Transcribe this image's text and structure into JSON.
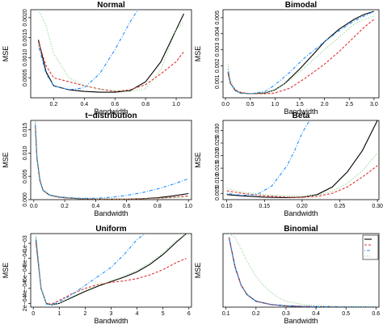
{
  "chart_data": [
    {
      "type": "line",
      "title": "Normal",
      "xlabel": "Bandwidth",
      "ylabel": "MSE",
      "xlim": [
        0.05,
        1.1
      ],
      "ylim": [
        0,
        0.0022
      ],
      "xticks": [
        0.2,
        0.4,
        0.6,
        0.8,
        1.0
      ],
      "xtick_labels": [
        "0.2",
        "0.4",
        "0.6",
        "0.8",
        "1.0"
      ],
      "yticks": [
        0.0005,
        0.001,
        0.0015,
        0.002
      ],
      "ytick_labels": [
        "0.0005",
        "0.0010",
        "0.0015",
        "0.0020"
      ],
      "series": [
        {
          "color": "#000000",
          "dash": "solid",
          "x": [
            0.1,
            0.15,
            0.2,
            0.3,
            0.4,
            0.5,
            0.6,
            0.7,
            0.8,
            0.9,
            1.0,
            1.05
          ],
          "y": [
            0.00145,
            0.00065,
            0.0003,
            0.0002,
            0.00016,
            0.00014,
            0.00014,
            0.00018,
            0.0004,
            0.0009,
            0.0017,
            0.0021
          ]
        },
        {
          "color": "#e03030",
          "dash": "dashed",
          "x": [
            0.1,
            0.15,
            0.2,
            0.3,
            0.4,
            0.5,
            0.6,
            0.7,
            0.8,
            0.9,
            1.0,
            1.05
          ],
          "y": [
            0.0014,
            0.0008,
            0.0005,
            0.0004,
            0.0003,
            0.00022,
            0.00016,
            0.0002,
            0.00033,
            0.0006,
            0.0009,
            0.00115
          ]
        },
        {
          "color": "#1e90ff",
          "dash": "dotdash",
          "x": [
            0.1,
            0.15,
            0.2,
            0.3,
            0.4,
            0.5,
            0.6,
            0.7,
            0.75
          ],
          "y": [
            0.0013,
            0.0006,
            0.0003,
            0.0002,
            0.00025,
            0.0006,
            0.0012,
            0.0019,
            0.0022
          ]
        },
        {
          "color": "#7ccd7c",
          "dash": "dotted",
          "x": [
            0.1,
            0.15,
            0.2,
            0.3,
            0.4,
            0.5,
            0.6,
            0.7,
            0.8,
            0.9,
            0.95,
            1.0,
            1.05
          ],
          "y": [
            0.0022,
            0.0018,
            0.0011,
            0.0005,
            0.0003,
            0.00022,
            0.00018,
            0.00016,
            0.00022,
            0.0007,
            0.0012,
            0.0017,
            0.0019
          ]
        }
      ]
    },
    {
      "type": "line",
      "title": "Bimodal",
      "xlabel": "Bandwidth",
      "ylabel": "MSE",
      "xlim": [
        -0.05,
        3.1
      ],
      "ylim": [
        0,
        0.0055
      ],
      "xticks": [
        0.0,
        0.5,
        1.0,
        1.5,
        2.0,
        2.5,
        3.0
      ],
      "xtick_labels": [
        "0.0",
        "0.5",
        "1.0",
        "1.5",
        "2.0",
        "2.5",
        "3.0"
      ],
      "yticks": [
        0.001,
        0.002,
        0.003,
        0.004,
        0.005
      ],
      "ytick_labels": [
        "0.001",
        "0.002",
        "0.003",
        "0.004",
        "0.005"
      ],
      "series": [
        {
          "color": "#000000",
          "dash": "solid",
          "x": [
            0.05,
            0.1,
            0.2,
            0.3,
            0.5,
            0.8,
            1.0,
            1.2,
            1.5,
            1.8,
            2.0,
            2.3,
            2.6,
            2.8,
            3.0
          ],
          "y": [
            0.0016,
            0.0009,
            0.00045,
            0.0003,
            0.00025,
            0.0003,
            0.0005,
            0.0009,
            0.0018,
            0.0028,
            0.0035,
            0.0043,
            0.0049,
            0.0052,
            0.0054
          ]
        },
        {
          "color": "#e03030",
          "dash": "dashed",
          "x": [
            0.05,
            0.1,
            0.2,
            0.3,
            0.5,
            0.8,
            1.0,
            1.3,
            1.6,
            2.0,
            2.3,
            2.6,
            2.8,
            3.0
          ],
          "y": [
            0.0016,
            0.0009,
            0.0005,
            0.00035,
            0.00025,
            0.00025,
            0.0003,
            0.0006,
            0.0012,
            0.0021,
            0.0029,
            0.0038,
            0.0044,
            0.0049
          ]
        },
        {
          "color": "#1e90ff",
          "dash": "dotdash",
          "x": [
            0.05,
            0.1,
            0.2,
            0.3,
            0.5,
            0.8,
            1.0,
            1.3,
            1.6,
            2.0,
            2.3,
            2.6,
            2.8,
            3.0
          ],
          "y": [
            0.0018,
            0.0009,
            0.00045,
            0.0003,
            0.00025,
            0.0004,
            0.0008,
            0.0016,
            0.0025,
            0.0035,
            0.0042,
            0.0048,
            0.0051,
            0.0054
          ]
        },
        {
          "color": "#7ccd7c",
          "dash": "dotted",
          "x": [
            0.05,
            0.1,
            0.2,
            0.3,
            0.5,
            0.8,
            1.0,
            1.3,
            1.6,
            2.0,
            2.3,
            2.6,
            2.8,
            3.0
          ],
          "y": [
            0.0021,
            0.0011,
            0.0005,
            0.0003,
            0.00025,
            0.0003,
            0.0005,
            0.0011,
            0.0019,
            0.003,
            0.0038,
            0.0046,
            0.0049,
            0.0051
          ]
        }
      ]
    },
    {
      "type": "line",
      "title": "t−distribution",
      "xlabel": "Bandwidth",
      "ylabel": "MSE",
      "xlim": [
        -0.02,
        1.02
      ],
      "ylim": [
        0,
        0.017
      ],
      "xticks": [
        0.0,
        0.2,
        0.4,
        0.6,
        0.8,
        1.0
      ],
      "xtick_labels": [
        "0.0",
        "0.2",
        "0.4",
        "0.6",
        "0.8",
        "1.0"
      ],
      "yticks": [
        0.0,
        0.005,
        0.01,
        0.015
      ],
      "ytick_labels": [
        "0.000",
        "0.005",
        "0.010",
        "0.015"
      ],
      "series": [
        {
          "color": "#000000",
          "dash": "solid",
          "x": [
            0.01,
            0.02,
            0.04,
            0.06,
            0.1,
            0.15,
            0.2,
            0.3,
            0.4,
            0.5,
            0.6,
            0.7,
            0.8,
            0.9,
            1.0
          ],
          "y": [
            0.016,
            0.009,
            0.004,
            0.002,
            0.001,
            0.0006,
            0.0004,
            0.0002,
            0.0001,
            0.0001,
            0.0001,
            0.0002,
            0.0004,
            0.0008,
            0.0013
          ]
        },
        {
          "color": "#e03030",
          "dash": "dashed",
          "x": [
            0.01,
            0.02,
            0.04,
            0.06,
            0.1,
            0.15,
            0.2,
            0.3,
            0.4,
            0.5,
            0.6,
            0.7,
            0.8,
            0.9,
            1.0
          ],
          "y": [
            0.016,
            0.009,
            0.004,
            0.002,
            0.001,
            0.0006,
            0.0004,
            0.0002,
            0.0001,
            0.0001,
            0.0001,
            0.0002,
            0.0003,
            0.0005,
            0.0008
          ]
        },
        {
          "color": "#1e90ff",
          "dash": "dotdash",
          "x": [
            0.01,
            0.02,
            0.04,
            0.06,
            0.1,
            0.15,
            0.2,
            0.3,
            0.4,
            0.5,
            0.6,
            0.7,
            0.8,
            0.9,
            1.0
          ],
          "y": [
            0.0165,
            0.009,
            0.004,
            0.002,
            0.001,
            0.0007,
            0.0005,
            0.0003,
            0.0003,
            0.0005,
            0.0009,
            0.0015,
            0.0023,
            0.0033,
            0.0045
          ]
        },
        {
          "color": "#7ccd7c",
          "dash": "dotted",
          "x": [
            0.01,
            0.02,
            0.04,
            0.06,
            0.1,
            0.15,
            0.2,
            0.3,
            0.4,
            0.5,
            0.6,
            0.7,
            0.8,
            0.9,
            1.0
          ],
          "y": [
            0.0168,
            0.0095,
            0.0045,
            0.0022,
            0.0011,
            0.0007,
            0.0004,
            0.0002,
            0.0001,
            0.0001,
            0.0001,
            0.0002,
            0.0003,
            0.0004,
            0.0006
          ]
        }
      ]
    },
    {
      "type": "line",
      "title": "Beta",
      "xlabel": "Bandwidth",
      "ylabel": "MSE",
      "xlim": [
        0.095,
        0.302
      ],
      "ylim": [
        0.0025,
        0.034
      ],
      "xticks": [
        0.1,
        0.15,
        0.2,
        0.25,
        0.3
      ],
      "xtick_labels": [
        "0.10",
        "0.15",
        "0.20",
        "0.25",
        "0.30"
      ],
      "yticks": [
        0.005,
        0.01,
        0.015,
        0.02,
        0.025,
        0.03
      ],
      "ytick_labels": [
        "0.005",
        "0.010",
        "0.015",
        "0.020",
        "0.025",
        "0.030"
      ],
      "series": [
        {
          "color": "#000000",
          "dash": "solid",
          "x": [
            0.1,
            0.12,
            0.15,
            0.18,
            0.2,
            0.22,
            0.24,
            0.26,
            0.28,
            0.3
          ],
          "y": [
            0.0045,
            0.004,
            0.0035,
            0.0033,
            0.0035,
            0.0045,
            0.0075,
            0.0135,
            0.022,
            0.034
          ]
        },
        {
          "color": "#e03030",
          "dash": "dashed",
          "x": [
            0.1,
            0.12,
            0.15,
            0.18,
            0.2,
            0.22,
            0.24,
            0.26,
            0.28,
            0.3
          ],
          "y": [
            0.006,
            0.005,
            0.004,
            0.0035,
            0.0034,
            0.0038,
            0.005,
            0.0075,
            0.0115,
            0.016
          ]
        },
        {
          "color": "#1e90ff",
          "dash": "dotdash",
          "x": [
            0.1,
            0.12,
            0.14,
            0.16,
            0.18,
            0.19,
            0.2,
            0.21
          ],
          "y": [
            0.005,
            0.0042,
            0.0045,
            0.008,
            0.016,
            0.022,
            0.029,
            0.034
          ]
        },
        {
          "color": "#7ccd7c",
          "dash": "dotted",
          "x": [
            0.1,
            0.12,
            0.15,
            0.18,
            0.2,
            0.22,
            0.24,
            0.26,
            0.28,
            0.3
          ],
          "y": [
            0.007,
            0.0055,
            0.0045,
            0.004,
            0.0038,
            0.0042,
            0.0058,
            0.009,
            0.014,
            0.021
          ]
        }
      ]
    },
    {
      "type": "line",
      "title": "Uniform",
      "xlabel": "Bandwidth",
      "ylabel": "MSE",
      "xlim": [
        -0.1,
        6.1
      ],
      "ylim": [
        0.00015,
        0.00113
      ],
      "xticks": [
        0,
        1,
        2,
        3,
        4,
        5,
        6
      ],
      "xtick_labels": [
        "0",
        "1",
        "2",
        "3",
        "4",
        "5",
        "6"
      ],
      "yticks": [
        0.0002,
        0.0004,
        0.0006,
        0.0008,
        0.001
      ],
      "ytick_labels": [
        "2e−04",
        "4e−04",
        "6e−04",
        "8e−04",
        "1e−03"
      ],
      "series": [
        {
          "color": "#000000",
          "dash": "solid",
          "x": [
            0.1,
            0.3,
            0.5,
            0.7,
            1.0,
            1.5,
            2.0,
            2.5,
            3.0,
            3.5,
            4.0,
            4.5,
            5.0,
            5.5,
            5.9
          ],
          "y": [
            0.00105,
            0.0004,
            0.0002,
            0.00018,
            0.0002,
            0.00028,
            0.00036,
            0.00043,
            0.00049,
            0.00055,
            0.00062,
            0.00072,
            0.00085,
            0.00101,
            0.00113
          ]
        },
        {
          "color": "#e03030",
          "dash": "dashed",
          "x": [
            0.1,
            0.3,
            0.5,
            0.7,
            1.0,
            1.5,
            2.0,
            2.5,
            3.0,
            3.5,
            4.0,
            4.5,
            5.0,
            5.5,
            5.9
          ],
          "y": [
            0.00102,
            0.0004,
            0.0002,
            0.00019,
            0.00024,
            0.00033,
            0.0004,
            0.00045,
            0.00048,
            0.0005,
            0.00053,
            0.00058,
            0.00065,
            0.00074,
            0.0008
          ]
        },
        {
          "color": "#1e90ff",
          "dash": "dotdash",
          "x": [
            0.1,
            0.3,
            0.5,
            0.7,
            1.0,
            1.5,
            2.0,
            2.5,
            3.0,
            3.5,
            4.0,
            4.3
          ],
          "y": [
            0.00108,
            0.0004,
            0.00019,
            0.00018,
            0.00022,
            0.00032,
            0.00044,
            0.00056,
            0.00068,
            0.00085,
            0.00105,
            0.00113
          ]
        },
        {
          "color": "#7ccd7c",
          "dash": "dotted",
          "x": [
            0.1,
            0.3,
            0.5,
            0.7,
            1.0,
            1.5,
            2.0,
            2.5,
            3.0,
            3.5,
            4.0,
            4.5,
            5.0,
            5.5,
            5.9
          ],
          "y": [
            0.00113,
            0.0004,
            0.0002,
            0.00018,
            0.0002,
            0.00029,
            0.00037,
            0.00044,
            0.0005,
            0.00056,
            0.00064,
            0.00074,
            0.00087,
            0.00103,
            0.00113
          ]
        }
      ]
    },
    {
      "type": "line",
      "title": "Binomial",
      "xlabel": "Bandwidth",
      "ylabel": "MSE",
      "xlim": [
        0.09,
        0.61
      ],
      "ylim": [
        0,
        1
      ],
      "xticks": [
        0.1,
        0.2,
        0.3,
        0.4,
        0.5,
        0.6
      ],
      "xtick_labels": [
        "0.1",
        "0.2",
        "0.3",
        "0.4",
        "0.5",
        "0.6"
      ],
      "yticks": [],
      "ytick_labels": [],
      "series": [
        {
          "color": "#000000",
          "dash": "solid",
          "x": [
            0.11,
            0.13,
            0.15,
            0.17,
            0.2,
            0.25,
            0.3,
            0.35,
            0.4,
            0.5,
            0.6
          ],
          "y": [
            0.95,
            0.55,
            0.3,
            0.17,
            0.08,
            0.035,
            0.018,
            0.01,
            0.006,
            0.003,
            0.002
          ]
        },
        {
          "color": "#e03030",
          "dash": "dashed",
          "x": [
            0.11,
            0.13,
            0.15,
            0.17,
            0.2,
            0.25,
            0.3,
            0.35,
            0.4,
            0.5,
            0.6
          ],
          "y": [
            0.95,
            0.55,
            0.3,
            0.17,
            0.08,
            0.035,
            0.018,
            0.01,
            0.006,
            0.003,
            0.002
          ]
        },
        {
          "color": "#1e90ff",
          "dash": "dotdash",
          "x": [
            0.11,
            0.13,
            0.15,
            0.17,
            0.2,
            0.25,
            0.3,
            0.35,
            0.4,
            0.5,
            0.6
          ],
          "y": [
            0.95,
            0.55,
            0.3,
            0.17,
            0.08,
            0.035,
            0.018,
            0.01,
            0.006,
            0.003,
            0.002
          ]
        },
        {
          "color": "#7ccd7c",
          "dash": "dotted",
          "x": [
            0.11,
            0.13,
            0.15,
            0.17,
            0.2,
            0.22,
            0.25,
            0.28,
            0.3,
            0.35,
            0.4,
            0.5,
            0.6
          ],
          "y": [
            1.0,
            0.95,
            0.8,
            0.62,
            0.42,
            0.32,
            0.2,
            0.12,
            0.08,
            0.04,
            0.02,
            0.008,
            0.004
          ]
        }
      ],
      "legend": {
        "placement": "top-right",
        "entries": [
          "",
          "",
          "",
          ""
        ]
      }
    }
  ]
}
